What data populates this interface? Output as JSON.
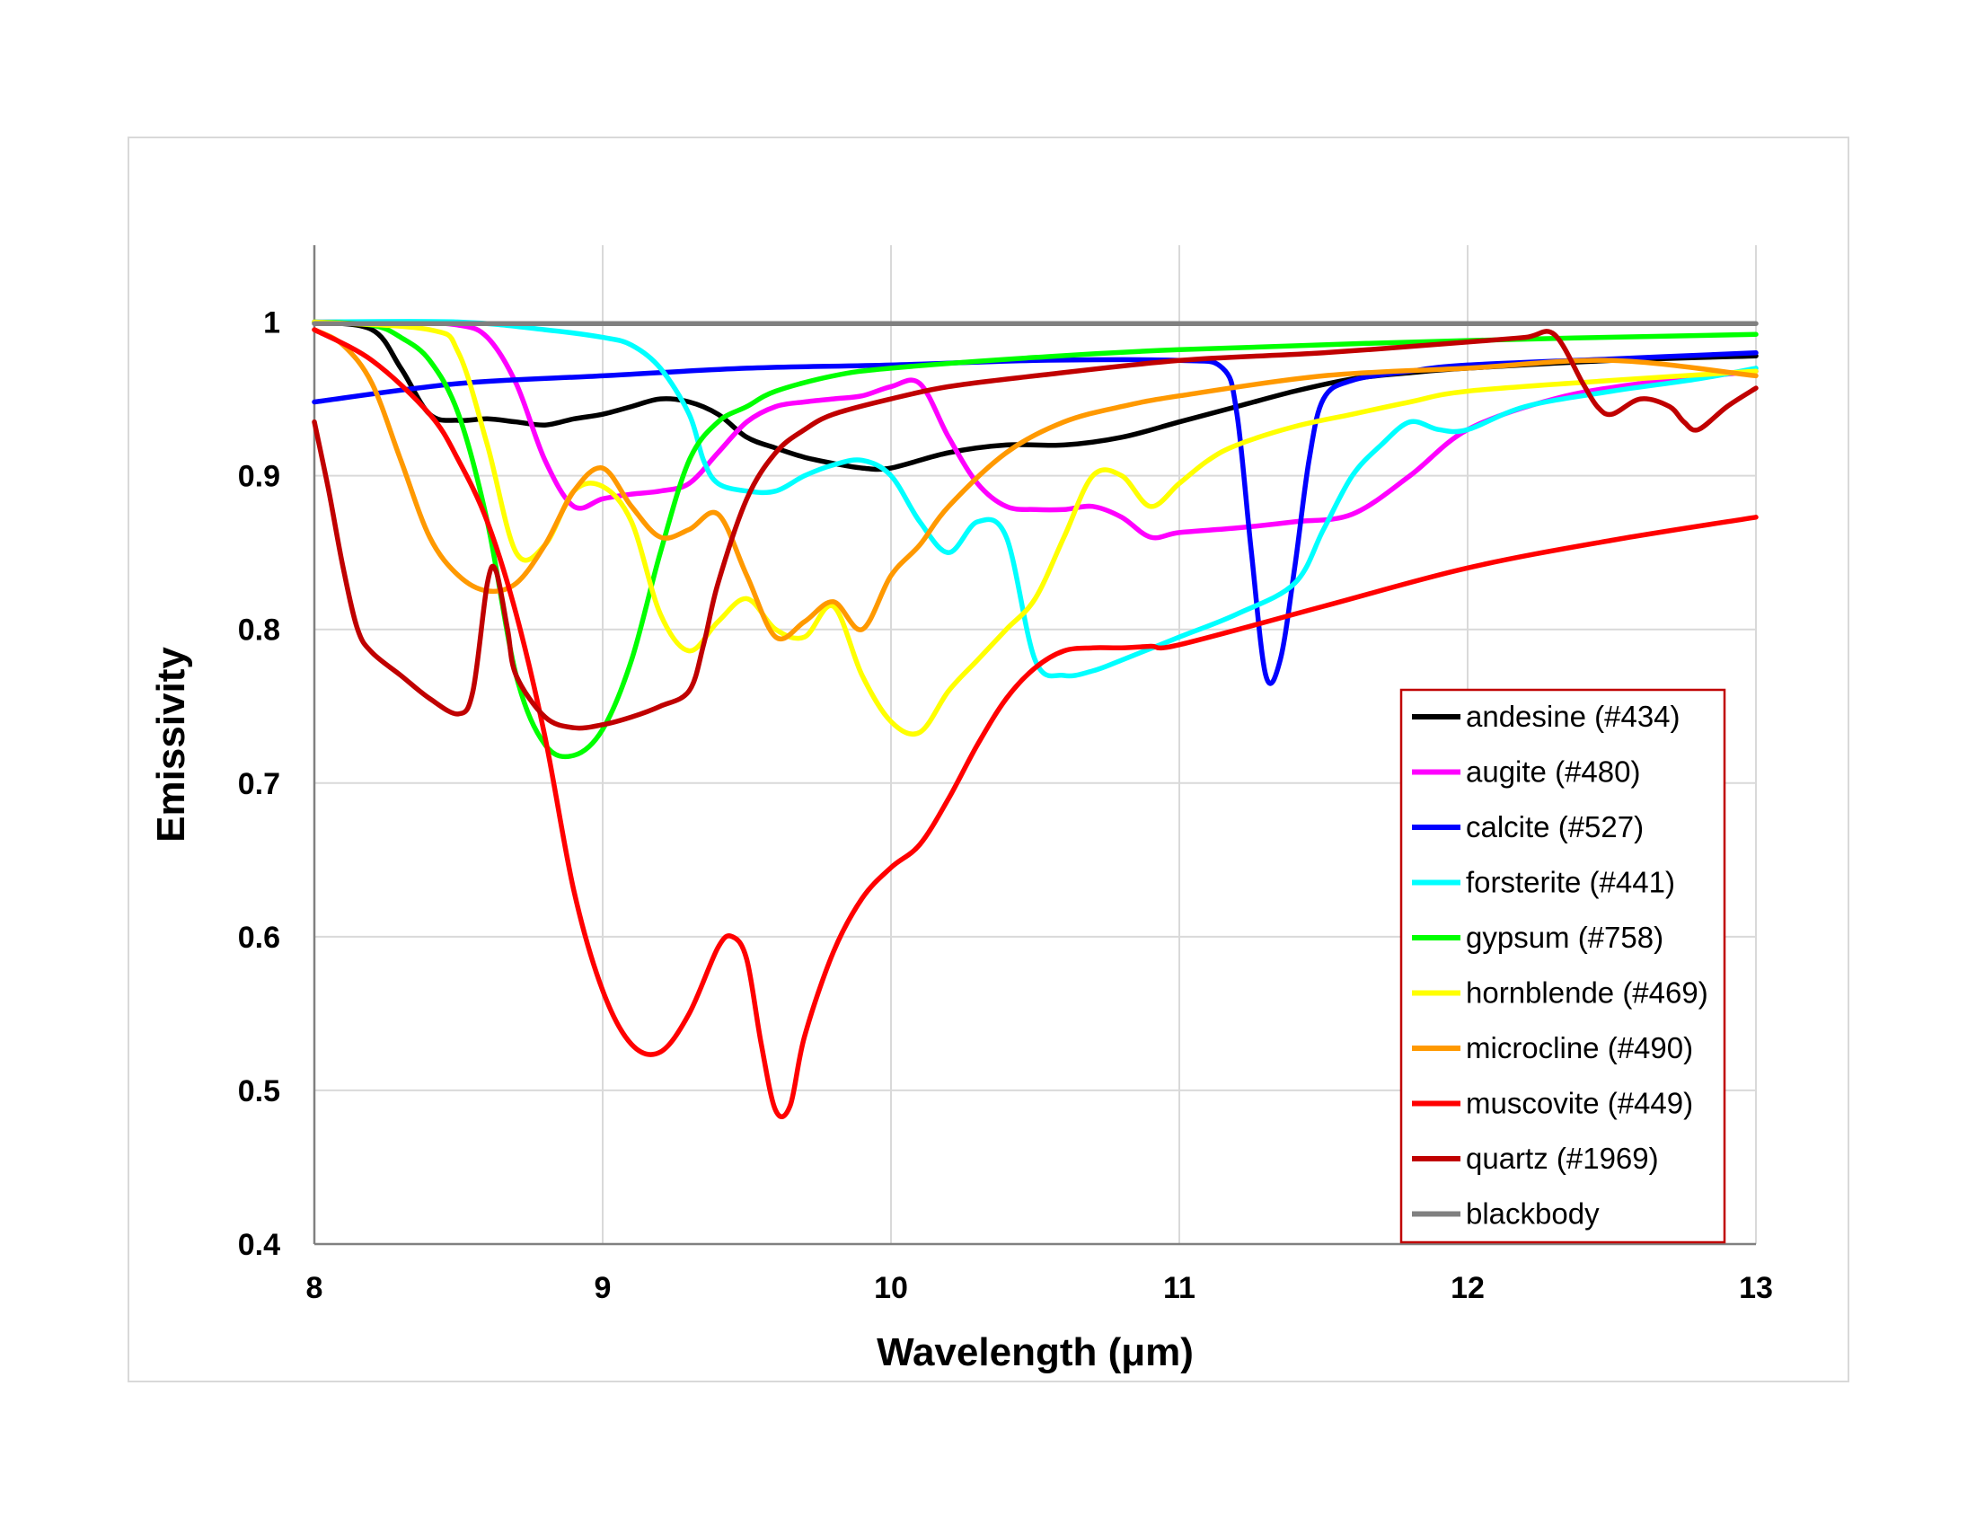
{
  "chart_data": {
    "type": "line",
    "title": "",
    "xlabel": "Wavelength (μm)",
    "ylabel": "Emissivity",
    "xlim": [
      8,
      13
    ],
    "ylim": [
      0.4,
      1.05
    ],
    "xticks": [
      "8",
      "9",
      "10",
      "11",
      "12",
      "13"
    ],
    "yticks": [
      "0.4",
      "0.5",
      "0.6",
      "0.7",
      "0.8",
      "0.9",
      "1"
    ],
    "grid": true,
    "legend_position": "bottom-right",
    "series": [
      {
        "name": "andesine (#434)",
        "color": "#000000",
        "x": [
          8,
          8.2,
          8.3,
          8.4,
          8.5,
          8.6,
          8.7,
          8.8,
          8.9,
          9.0,
          9.1,
          9.2,
          9.3,
          9.4,
          9.5,
          9.6,
          9.7,
          9.8,
          9.9,
          10.0,
          10.2,
          10.4,
          10.6,
          10.8,
          11.0,
          11.2,
          11.4,
          11.6,
          11.8,
          12.0,
          12.5,
          13.0
        ],
        "y": [
          1.0,
          0.995,
          0.97,
          0.94,
          0.936,
          0.937,
          0.935,
          0.933,
          0.937,
          0.94,
          0.945,
          0.95,
          0.948,
          0.94,
          0.925,
          0.918,
          0.912,
          0.908,
          0.905,
          0.905,
          0.915,
          0.92,
          0.92,
          0.925,
          0.935,
          0.945,
          0.955,
          0.963,
          0.967,
          0.97,
          0.975,
          0.978
        ]
      },
      {
        "name": "augite (#480)",
        "color": "#ff00ff",
        "x": [
          8,
          8.3,
          8.5,
          8.6,
          8.7,
          8.8,
          8.9,
          9.0,
          9.1,
          9.2,
          9.3,
          9.4,
          9.5,
          9.6,
          9.7,
          9.8,
          9.9,
          10.0,
          10.1,
          10.2,
          10.3,
          10.4,
          10.5,
          10.6,
          10.7,
          10.8,
          10.9,
          11.0,
          11.2,
          11.4,
          11.6,
          11.8,
          12.0,
          12.3,
          12.6,
          13.0
        ],
        "y": [
          1.0,
          1.0,
          0.998,
          0.99,
          0.96,
          0.91,
          0.88,
          0.885,
          0.888,
          0.89,
          0.895,
          0.915,
          0.935,
          0.945,
          0.948,
          0.95,
          0.952,
          0.958,
          0.96,
          0.925,
          0.895,
          0.88,
          0.878,
          0.878,
          0.88,
          0.873,
          0.86,
          0.863,
          0.866,
          0.87,
          0.875,
          0.9,
          0.93,
          0.95,
          0.96,
          0.968
        ]
      },
      {
        "name": "calcite (#527)",
        "color": "#0000ff",
        "x": [
          8,
          8.5,
          9,
          9.5,
          10,
          10.5,
          11,
          11.15,
          11.2,
          11.25,
          11.3,
          11.35,
          11.4,
          11.45,
          11.5,
          11.6,
          11.8,
          12.0,
          12.5,
          13.0
        ],
        "y": [
          0.948,
          0.96,
          0.965,
          0.97,
          0.972,
          0.975,
          0.975,
          0.97,
          0.94,
          0.85,
          0.77,
          0.78,
          0.84,
          0.91,
          0.95,
          0.962,
          0.968,
          0.972,
          0.976,
          0.98
        ]
      },
      {
        "name": "forsterite (#441)",
        "color": "#00ffff",
        "x": [
          8,
          8.5,
          8.8,
          9.0,
          9.1,
          9.2,
          9.3,
          9.35,
          9.4,
          9.5,
          9.6,
          9.7,
          9.8,
          9.9,
          10.0,
          10.1,
          10.2,
          10.3,
          10.4,
          10.5,
          10.6,
          10.7,
          10.8,
          11.0,
          11.2,
          11.4,
          11.5,
          11.6,
          11.7,
          11.8,
          11.9,
          12.0,
          12.2,
          12.5,
          12.8,
          13.0
        ],
        "y": [
          1.0,
          1.0,
          0.995,
          0.99,
          0.985,
          0.97,
          0.94,
          0.91,
          0.895,
          0.89,
          0.89,
          0.9,
          0.907,
          0.91,
          0.9,
          0.87,
          0.85,
          0.87,
          0.86,
          0.78,
          0.77,
          0.773,
          0.78,
          0.795,
          0.81,
          0.83,
          0.865,
          0.9,
          0.92,
          0.935,
          0.93,
          0.93,
          0.945,
          0.955,
          0.963,
          0.97
        ]
      },
      {
        "name": "gypsum (#758)",
        "color": "#00ff00",
        "x": [
          8,
          8.2,
          8.3,
          8.4,
          8.5,
          8.6,
          8.7,
          8.8,
          8.9,
          9.0,
          9.1,
          9.2,
          9.3,
          9.4,
          9.5,
          9.6,
          9.8,
          10.0,
          10.5,
          11.0,
          12.0,
          13.0
        ],
        "y": [
          1.0,
          0.998,
          0.99,
          0.975,
          0.94,
          0.87,
          0.77,
          0.725,
          0.718,
          0.735,
          0.78,
          0.85,
          0.91,
          0.935,
          0.945,
          0.955,
          0.965,
          0.97,
          0.977,
          0.982,
          0.988,
          0.992
        ]
      },
      {
        "name": "hornblende (#469)",
        "color": "#ffff00",
        "x": [
          8,
          8.4,
          8.5,
          8.6,
          8.7,
          8.8,
          8.9,
          9.0,
          9.1,
          9.2,
          9.3,
          9.4,
          9.5,
          9.6,
          9.7,
          9.8,
          9.9,
          10.0,
          10.1,
          10.2,
          10.3,
          10.4,
          10.5,
          10.6,
          10.7,
          10.8,
          10.9,
          11.0,
          11.1,
          11.2,
          11.4,
          11.6,
          11.8,
          12.0,
          12.5,
          13.0
        ],
        "y": [
          1.0,
          0.995,
          0.98,
          0.92,
          0.85,
          0.855,
          0.89,
          0.893,
          0.87,
          0.81,
          0.786,
          0.805,
          0.82,
          0.8,
          0.795,
          0.815,
          0.77,
          0.74,
          0.733,
          0.76,
          0.78,
          0.8,
          0.82,
          0.86,
          0.9,
          0.9,
          0.88,
          0.895,
          0.91,
          0.92,
          0.932,
          0.94,
          0.948,
          0.955,
          0.962,
          0.968
        ]
      },
      {
        "name": "microcline (#490)",
        "color": "#ff9900",
        "x": [
          8,
          8.1,
          8.2,
          8.3,
          8.4,
          8.5,
          8.6,
          8.7,
          8.8,
          8.9,
          9.0,
          9.1,
          9.2,
          9.3,
          9.4,
          9.5,
          9.6,
          9.7,
          9.8,
          9.9,
          10.0,
          10.1,
          10.2,
          10.4,
          10.6,
          10.8,
          11.0,
          11.5,
          12.0,
          12.5,
          13.0
        ],
        "y": [
          0.995,
          0.985,
          0.96,
          0.91,
          0.86,
          0.835,
          0.825,
          0.83,
          0.855,
          0.89,
          0.905,
          0.88,
          0.86,
          0.865,
          0.875,
          0.835,
          0.795,
          0.805,
          0.818,
          0.8,
          0.835,
          0.855,
          0.88,
          0.915,
          0.935,
          0.945,
          0.952,
          0.965,
          0.97,
          0.975,
          0.965
        ]
      },
      {
        "name": "muscovite (#449)",
        "color": "#ff0000",
        "x": [
          8,
          8.2,
          8.4,
          8.5,
          8.6,
          8.7,
          8.8,
          8.9,
          9.0,
          9.1,
          9.2,
          9.3,
          9.4,
          9.45,
          9.5,
          9.55,
          9.6,
          9.65,
          9.7,
          9.8,
          9.9,
          10.0,
          10.1,
          10.2,
          10.3,
          10.4,
          10.5,
          10.6,
          10.7,
          10.8,
          10.9,
          11.0,
          11.5,
          12.0,
          12.5,
          13.0
        ],
        "y": [
          0.995,
          0.975,
          0.94,
          0.91,
          0.87,
          0.81,
          0.73,
          0.63,
          0.565,
          0.53,
          0.525,
          0.55,
          0.593,
          0.6,
          0.585,
          0.53,
          0.487,
          0.49,
          0.535,
          0.59,
          0.625,
          0.645,
          0.66,
          0.69,
          0.725,
          0.755,
          0.775,
          0.786,
          0.788,
          0.788,
          0.789,
          0.79,
          0.815,
          0.84,
          0.858,
          0.873
        ]
      },
      {
        "name": "quartz (#1969)",
        "color": "#c00000",
        "x": [
          8,
          8.05,
          8.1,
          8.15,
          8.2,
          8.3,
          8.4,
          8.5,
          8.55,
          8.6,
          8.63,
          8.67,
          8.7,
          8.8,
          8.9,
          9.0,
          9.1,
          9.2,
          9.3,
          9.35,
          9.4,
          9.5,
          9.6,
          9.7,
          9.8,
          10.0,
          10.2,
          10.5,
          11.0,
          11.5,
          12.0,
          12.2,
          12.3,
          12.4,
          12.45,
          12.5,
          12.6,
          12.7,
          12.75,
          12.8,
          12.9,
          13.0
        ],
        "y": [
          0.935,
          0.89,
          0.84,
          0.8,
          0.785,
          0.77,
          0.755,
          0.745,
          0.76,
          0.83,
          0.838,
          0.8,
          0.77,
          0.743,
          0.736,
          0.738,
          0.743,
          0.75,
          0.76,
          0.79,
          0.83,
          0.885,
          0.915,
          0.93,
          0.94,
          0.95,
          0.958,
          0.965,
          0.975,
          0.98,
          0.987,
          0.99,
          0.992,
          0.96,
          0.945,
          0.94,
          0.95,
          0.945,
          0.935,
          0.93,
          0.945,
          0.957
        ]
      },
      {
        "name": "blackbody",
        "color": "#808080",
        "x": [
          8,
          13
        ],
        "y": [
          0.999,
          0.999
        ]
      }
    ]
  }
}
